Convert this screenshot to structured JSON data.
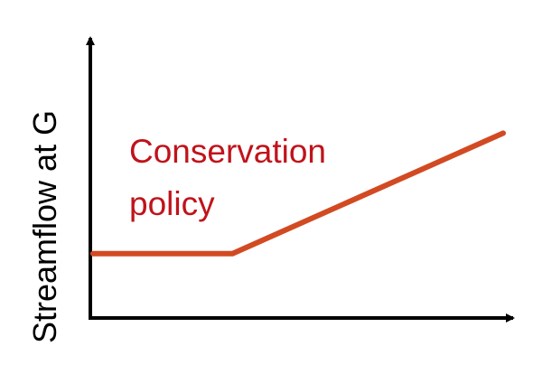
{
  "chart_data": {
    "type": "line",
    "title": "",
    "xlabel": "",
    "ylabel": "Streamflow at G",
    "annotation": [
      "Conservation",
      "policy"
    ],
    "xlim": [
      0,
      10
    ],
    "ylim": [
      0,
      10
    ],
    "grid": false,
    "legend": "none",
    "series": [
      {
        "color": "#d24a22",
        "x": [
          0,
          3.4,
          10
        ],
        "y": [
          2.3,
          2.3,
          6.6
        ]
      }
    ],
    "colors": {
      "line": "#d24a22",
      "annotation": "#c0131a",
      "axis": "#000000"
    }
  }
}
